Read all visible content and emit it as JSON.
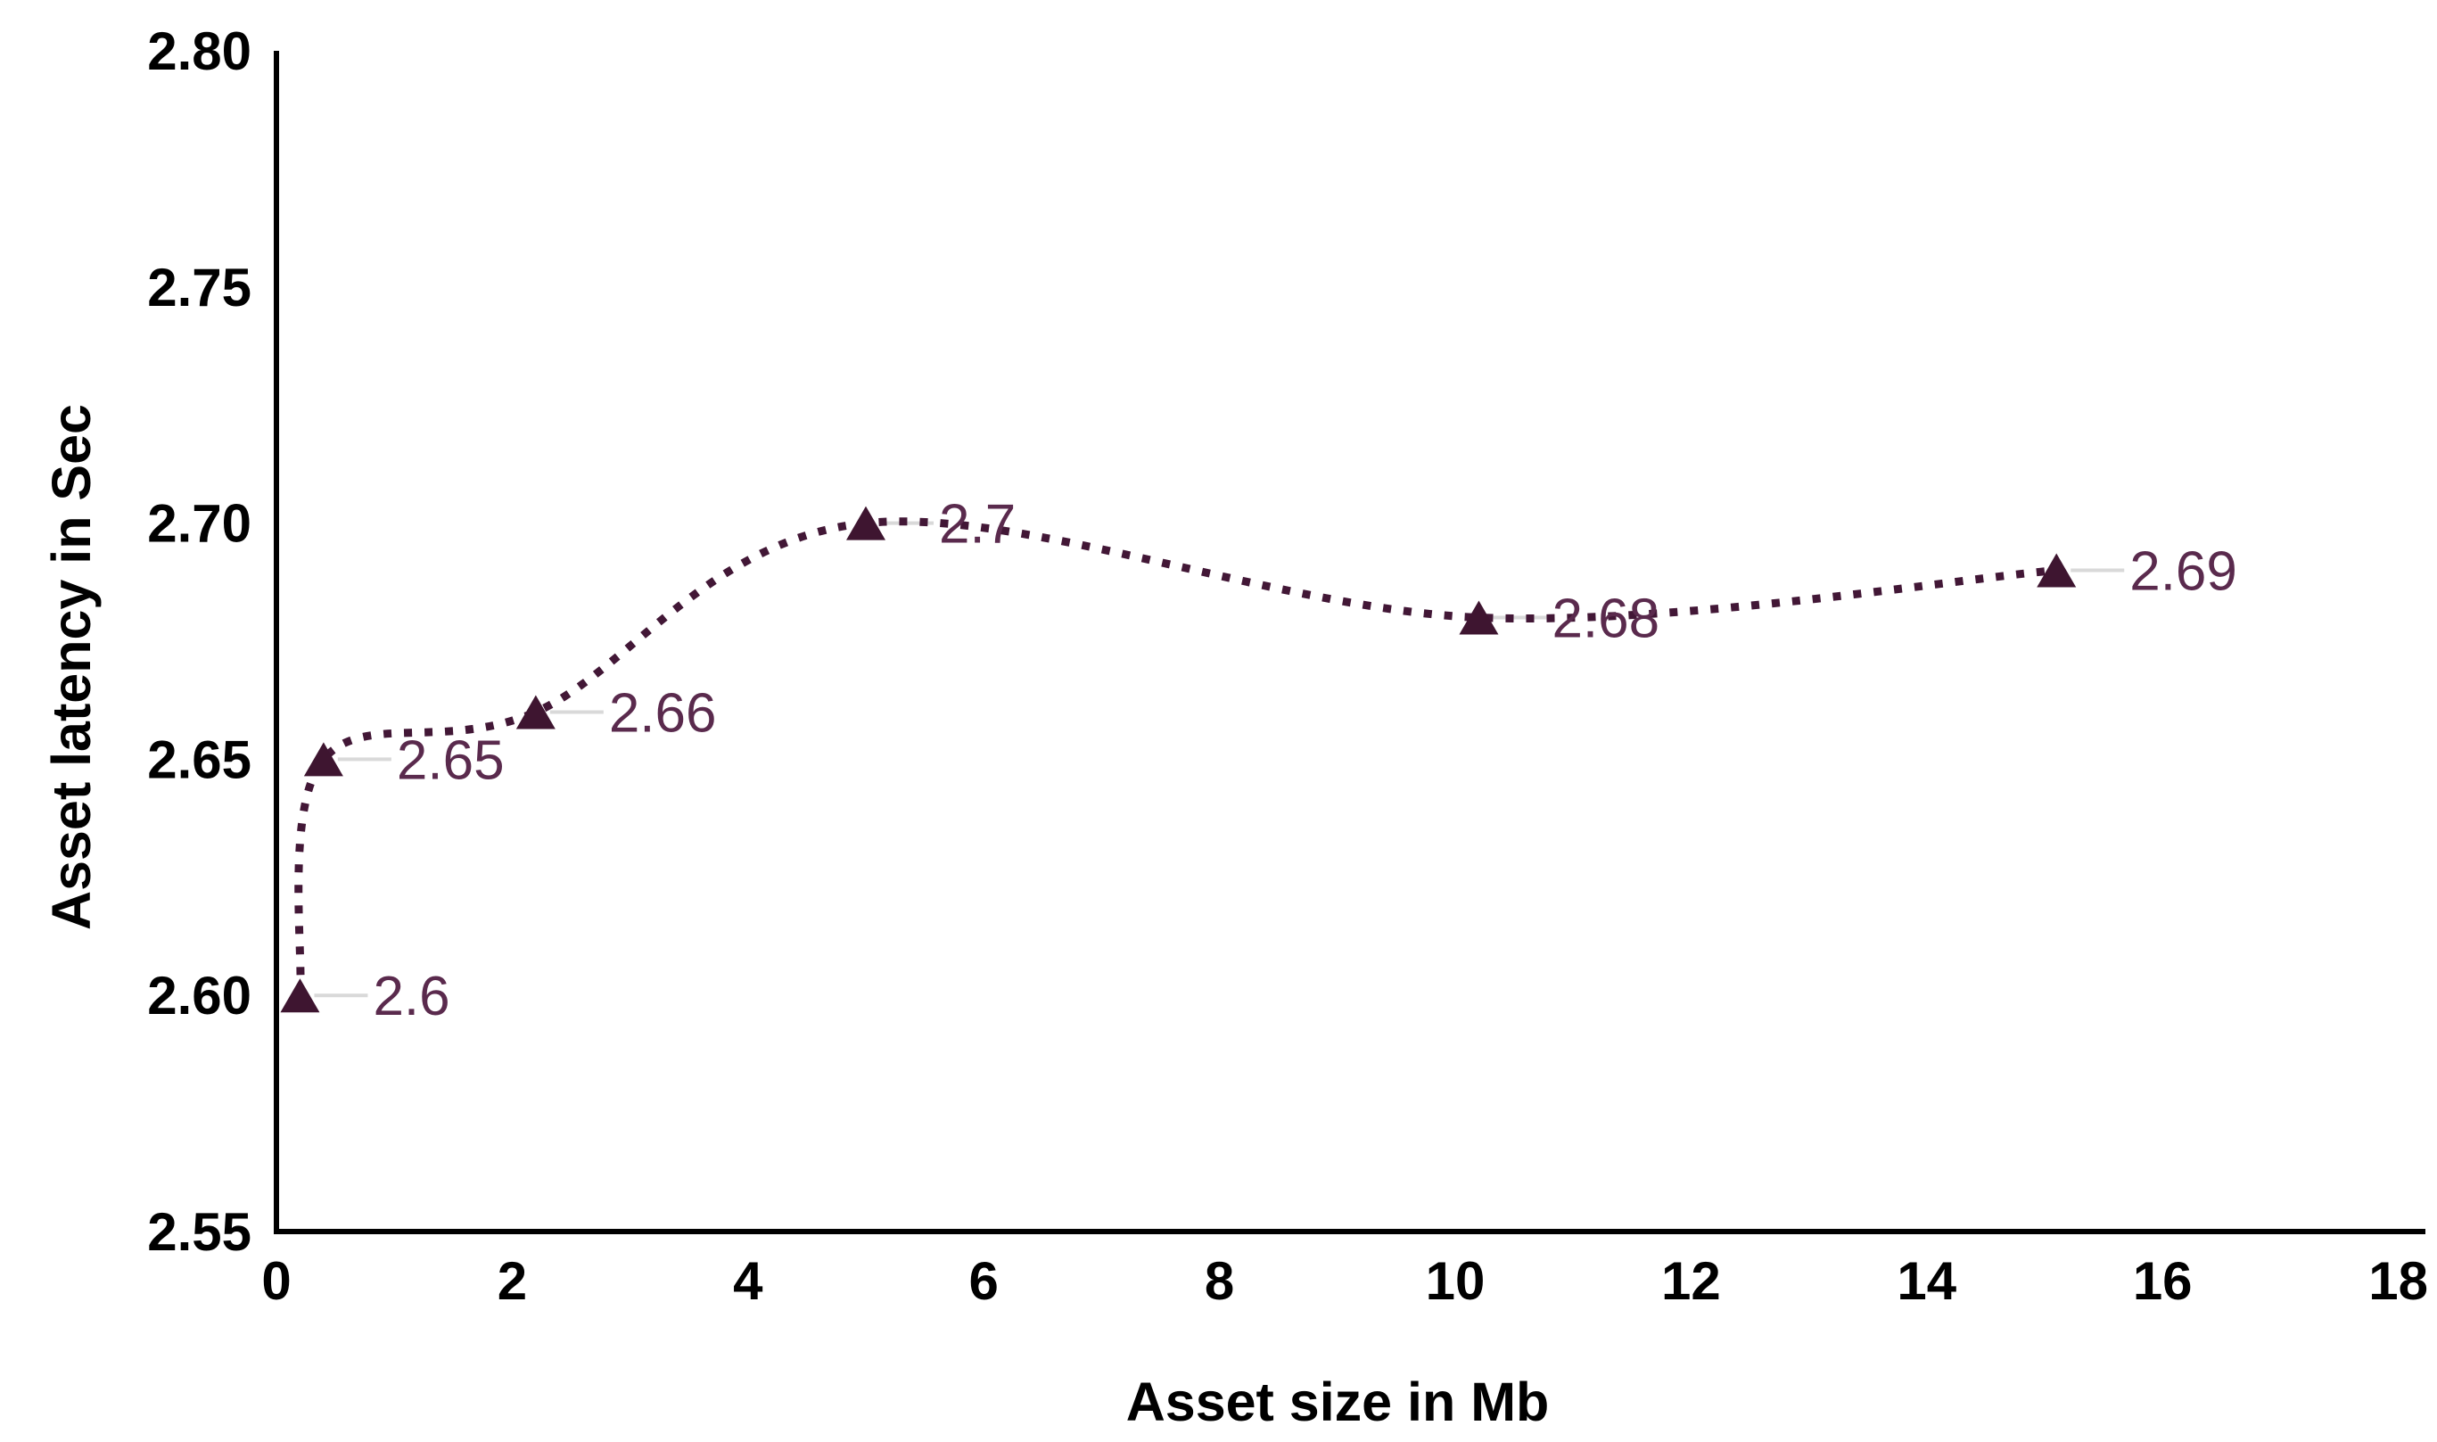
{
  "chart_data": {
    "type": "line",
    "subtype": "scatter-with-smooth-dotted-line-and-triangle-markers",
    "title": "",
    "xlabel": "Asset size in Mb",
    "ylabel": "Asset latency in Sec",
    "x": [
      0.2,
      0.4,
      2.2,
      5,
      10.2,
      15.1
    ],
    "y": [
      2.6,
      2.65,
      2.66,
      2.7,
      2.68,
      2.69
    ],
    "point_labels": [
      "2.6",
      "2.65",
      "2.66",
      "2.7",
      "2.68",
      "2.69"
    ],
    "x_ticks": [
      "0",
      "2",
      "4",
      "6",
      "8",
      "10",
      "12",
      "14",
      "16",
      "18"
    ],
    "y_ticks": [
      "2.80",
      "2.75",
      "2.70",
      "2.65",
      "2.60",
      "2.55"
    ],
    "xlim": [
      0,
      18
    ],
    "ylim": [
      2.55,
      2.8
    ],
    "grid": false,
    "legend": false,
    "marker": "triangle",
    "line_style": "dotted",
    "colors": {
      "marker": "#3E1530",
      "line": "#421736",
      "data_label": "#5A2A4D",
      "leader_line": "#D9D9D9",
      "axis_line": "#000000",
      "axis_text": "#000000",
      "background": "#FFFFFF"
    }
  }
}
